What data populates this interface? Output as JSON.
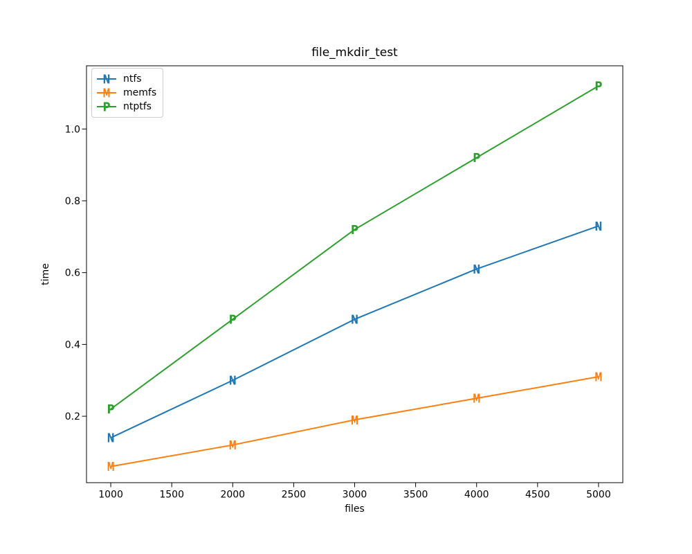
{
  "figure": {
    "background": "#ffffff",
    "spine_color": "#000000",
    "tick_label_color": "#000000"
  },
  "chart_data": {
    "type": "line",
    "title": "file_mkdir_test",
    "xlabel": "files",
    "ylabel": "time",
    "x": [
      1000,
      2000,
      3000,
      4000,
      5000
    ],
    "series": [
      {
        "name": "ntfs",
        "marker": "N",
        "color": "#1f77b4",
        "values": [
          0.14,
          0.3,
          0.47,
          0.61,
          0.73
        ]
      },
      {
        "name": "memfs",
        "marker": "M",
        "color": "#ff7f0e",
        "values": [
          0.06,
          0.12,
          0.19,
          0.25,
          0.31
        ]
      },
      {
        "name": "ntptfs",
        "marker": "P",
        "color": "#2ca02c",
        "values": [
          0.22,
          0.47,
          0.72,
          0.92,
          1.12
        ]
      }
    ],
    "x_ticks": [
      1000,
      1500,
      2000,
      2500,
      3000,
      3500,
      4000,
      4500,
      5000
    ],
    "y_ticks": [
      0.2,
      0.4,
      0.6,
      0.8,
      1.0
    ],
    "xlim": [
      801,
      5199
    ],
    "ylim": [
      0.015,
      1.176
    ],
    "grid": false,
    "legend_position": "upper left"
  }
}
